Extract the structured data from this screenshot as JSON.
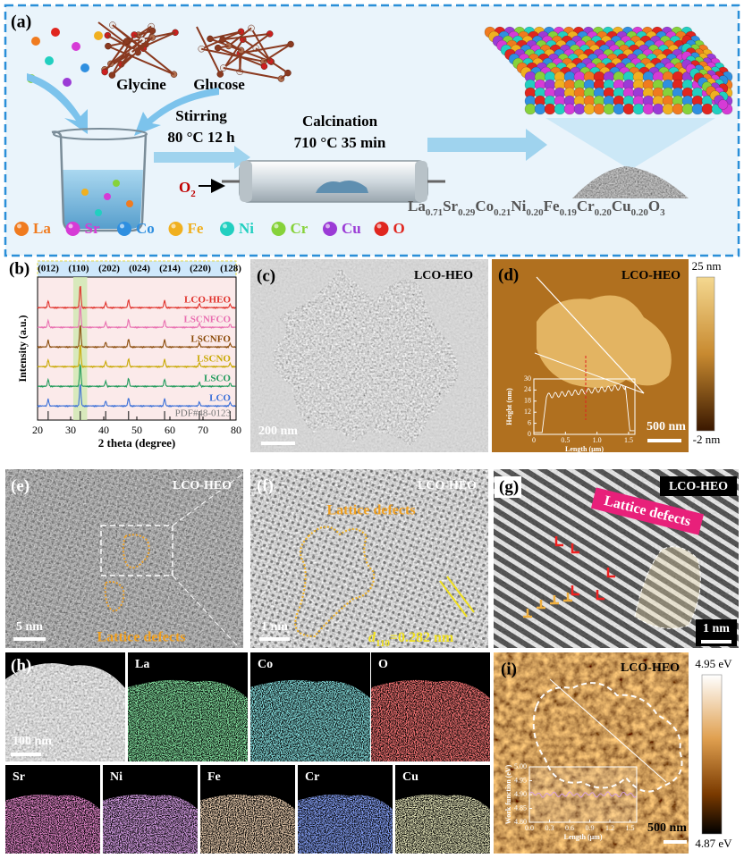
{
  "panel_a": {
    "label": "(a)",
    "reagents": [
      "Glycine",
      "Glucose"
    ],
    "steps": [
      {
        "title": "Stirring",
        "condition": "80 °C 12 h"
      },
      {
        "title": "Calcination",
        "condition": "710 °C 35 min"
      }
    ],
    "gas": {
      "symbol": "O",
      "sub": "2"
    },
    "product": [
      {
        "el": "La",
        "sub": "0.71"
      },
      {
        "el": "Sr",
        "sub": "0.29"
      },
      {
        "el": "Co",
        "sub": "0.21"
      },
      {
        "el": "Ni",
        "sub": "0.20"
      },
      {
        "el": "Fe",
        "sub": "0.19"
      },
      {
        "el": "Cr",
        "sub": "0.20"
      },
      {
        "el": "Cu",
        "sub": "0.20"
      },
      {
        "el": "O",
        "sub": "3"
      }
    ],
    "ions": [
      {
        "name": "La",
        "color": "#f07b1f"
      },
      {
        "name": "Sr",
        "color": "#d63bd6"
      },
      {
        "name": "Co",
        "color": "#2f8fe0"
      },
      {
        "name": "Fe",
        "color": "#f0b020"
      },
      {
        "name": "Ni",
        "color": "#22cfc0"
      },
      {
        "name": "Cr",
        "color": "#86d23a"
      },
      {
        "name": "Cu",
        "color": "#9b3bd6"
      },
      {
        "name": "O",
        "color": "#e0261f"
      }
    ]
  },
  "chart_data": {
    "type": "line",
    "label": "(b)",
    "xlabel": "2 theta (degree)",
    "ylabel": "Intensity (a.u.)",
    "xlim": [
      20,
      80
    ],
    "xticks": [
      20,
      30,
      40,
      50,
      60,
      70,
      80
    ],
    "peaks": [
      {
        "label": "(012)",
        "x": 23.2
      },
      {
        "label": "(110)",
        "x": 32.9
      },
      {
        "label": "(202)",
        "x": 40.6
      },
      {
        "label": "(024)",
        "x": 47.5
      },
      {
        "label": "(214)",
        "x": 58.4
      },
      {
        "label": "(220)",
        "x": 68.9
      },
      {
        "label": "(128)",
        "x": 78.2
      }
    ],
    "series": [
      {
        "name": "LCO-HEO",
        "color": "#e0302a"
      },
      {
        "name": "LSCNFCO",
        "color": "#e96fb0"
      },
      {
        "name": "LSCNFO",
        "color": "#8a4a08"
      },
      {
        "name": "LSCNO",
        "color": "#c8a800"
      },
      {
        "name": "LSCO",
        "color": "#1f9a5a"
      },
      {
        "name": "LCO",
        "color": "#3a6fd8"
      }
    ],
    "reference": "PDF#48-0123"
  },
  "panel_c": {
    "label": "(c)",
    "tag": "LCO-HEO",
    "scale_bar": "200 nm"
  },
  "panel_d": {
    "label": "(d)",
    "tag": "LCO-HEO",
    "scale_bar": "500 nm",
    "colorbar": {
      "max": "25 nm",
      "min": "-2 nm"
    },
    "inset": {
      "xlabel": "Length (μm)",
      "ylabel": "Height (nm)",
      "xlim": [
        0,
        1.6
      ],
      "ylim": [
        0,
        30
      ],
      "xticks": [
        0,
        0.5,
        {
          "value": 1,
          "label": "1.0"
        },
        1.5
      ],
      "yticks": [
        0,
        6,
        12,
        18,
        24,
        30
      ]
    }
  },
  "panel_e": {
    "label": "(e)",
    "tag": "LCO-HEO",
    "scale_bar": "5 nm",
    "annotation": "Lattice defects"
  },
  "panel_f": {
    "label": "(f)",
    "tag": "LCO-HEO",
    "scale_bar": "1 nm",
    "annotation": "Lattice defects",
    "spacing": {
      "symbol": "d",
      "sub": "110",
      "text": "=0.282 nm"
    }
  },
  "panel_g": {
    "label": "(g)",
    "tag": "LCO-HEO",
    "scale_bar": "1 nm",
    "annotation": "Lattice defects"
  },
  "panel_h": {
    "label": "(h)",
    "scale_bar": "100 nm",
    "maps": [
      {
        "element": "La",
        "color": "#3fd060"
      },
      {
        "element": "Co",
        "color": "#40c8c8"
      },
      {
        "element": "O",
        "color": "#ff3030"
      },
      {
        "element": "Sr",
        "color": "#d040a0"
      },
      {
        "element": "Ni",
        "color": "#c060e0"
      },
      {
        "element": "Fe",
        "color": "#d8a070"
      },
      {
        "element": "Cr",
        "color": "#4060ff"
      },
      {
        "element": "Cu",
        "color": "#d0d080"
      }
    ]
  },
  "panel_i": {
    "label": "(i)",
    "tag": "LCO-HEO",
    "scale_bar": "500 nm",
    "colorbar": {
      "max": "4.95 eV",
      "min": "4.87 eV"
    },
    "inset": {
      "xlabel": "Length (μm)",
      "ylabel": "Work function (eV)",
      "xlim": [
        0,
        1.6
      ],
      "ylim": [
        4.8,
        5.0
      ],
      "xticks": [
        {
          "value": 0,
          "label": "0.0"
        },
        0.3,
        0.6,
        0.9,
        1.2,
        1.5
      ],
      "yticks": [
        {
          "value": 4.8,
          "label": "4.80"
        },
        4.85,
        {
          "value": 4.9,
          "label": "4.90"
        },
        4.95,
        {
          "value": 5,
          "label": "5.00"
        }
      ]
    }
  }
}
